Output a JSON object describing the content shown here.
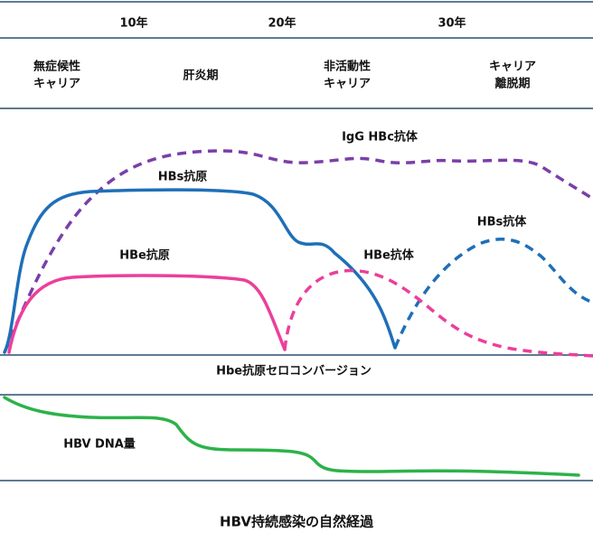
{
  "timeline": [
    "10年",
    "20年",
    "30年"
  ],
  "phases": [
    [
      "無症候性",
      "キャリア"
    ],
    [
      "肝炎期"
    ],
    [
      "非活動性",
      "キャリア"
    ],
    [
      "キャリア",
      "離脱期"
    ]
  ],
  "curves": {
    "igg_hbc": "IgG HBc抗体",
    "hbs_antigen": "HBs抗原",
    "hbs_antibody": "HBs抗体",
    "hbe_antigen": "HBe抗原",
    "hbe_antibody": "HBe抗体",
    "hbv_dna": "HBV DNA量"
  },
  "seroconversion": "Hbe抗原セロコンバージョン",
  "title": "HBV持続感染の自然経過"
}
